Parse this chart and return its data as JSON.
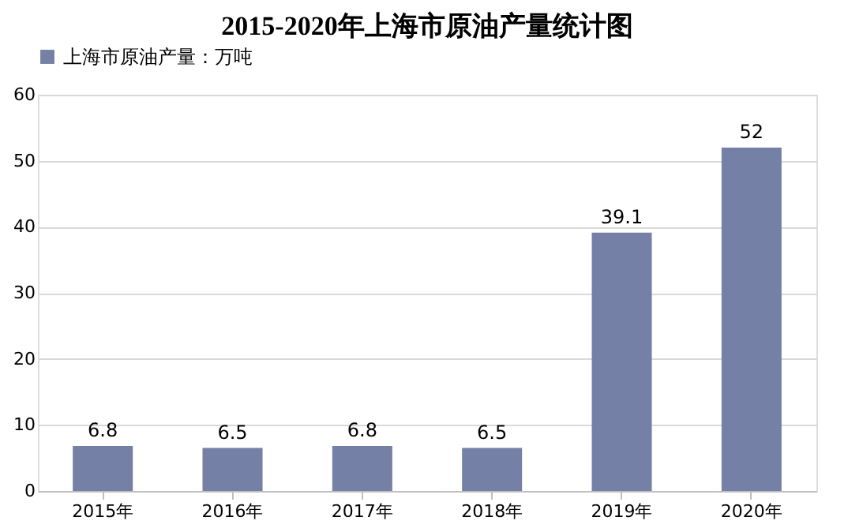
{
  "chart_data": {
    "type": "bar",
    "title": "2015-2020年上海市原油产量统计图",
    "categories": [
      "2015年",
      "2016年",
      "2017年",
      "2018年",
      "2019年",
      "2020年"
    ],
    "series": [
      {
        "name": "上海市原油产量：万吨",
        "color": "#7480a5",
        "values": [
          6.8,
          6.5,
          6.8,
          6.5,
          39.1,
          52
        ]
      }
    ],
    "ylim": [
      0,
      60
    ],
    "yticks": [
      0,
      10,
      20,
      30,
      40,
      50,
      60
    ],
    "grid": "y",
    "legend": "top",
    "data_labels": true
  }
}
